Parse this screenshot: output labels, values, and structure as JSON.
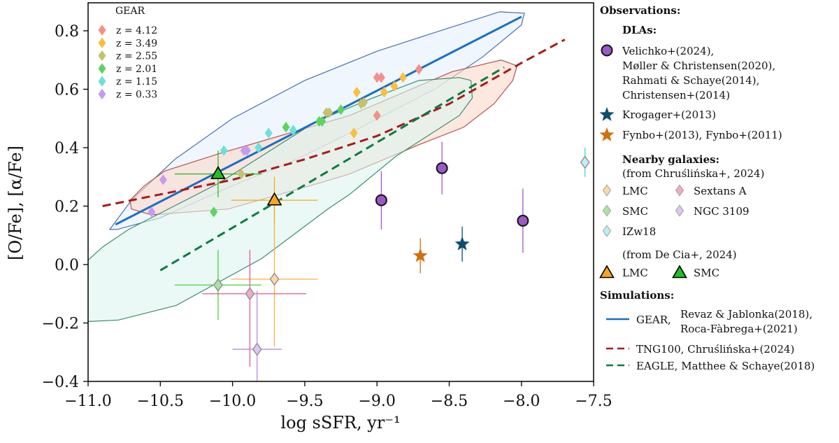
{
  "chart_data": {
    "type": "scatter",
    "xlabel": "log sSFR, yr⁻¹",
    "ylabel": "[O/Fe], [α/Fe]",
    "xlim": [
      -11.0,
      -7.5
    ],
    "ylim": [
      -0.4,
      0.9
    ],
    "xticks": [
      -11.0,
      -10.5,
      -10.0,
      -9.5,
      -9.0,
      -8.5,
      -8.0,
      -7.5
    ],
    "xtick_labels": [
      "−11.0",
      "−10.5",
      "−10.0",
      "−9.5",
      "−9.0",
      "−8.5",
      "−8.0",
      "−7.5"
    ],
    "yticks": [
      -0.4,
      -0.2,
      0.0,
      0.2,
      0.4,
      0.6,
      0.8
    ],
    "ytick_labels": [
      "−0.4",
      "−0.2",
      "0.0",
      "0.2",
      "0.4",
      "0.6",
      "0.8"
    ],
    "grid": false,
    "gear_legend_title": "GEAR",
    "gear_points": [
      {
        "name": "z = 4.12",
        "color": "#f4908a",
        "points": [
          [
            -8.71,
            0.668
          ],
          [
            -9.0,
            0.64
          ],
          [
            -8.97,
            0.64
          ],
          [
            -9.0,
            0.51
          ]
        ]
      },
      {
        "name": "z = 3.49",
        "color": "#fbbf3a",
        "points": [
          [
            -8.82,
            0.64
          ],
          [
            -8.88,
            0.61
          ],
          [
            -8.95,
            0.59
          ],
          [
            -9.14,
            0.59
          ],
          [
            -9.16,
            0.45
          ]
        ]
      },
      {
        "name": "z = 2.55",
        "color": "#c4c26a",
        "points": [
          [
            -9.11,
            0.55
          ],
          [
            -9.09,
            0.555
          ],
          [
            -9.35,
            0.52
          ],
          [
            -9.33,
            0.52
          ],
          [
            -9.94,
            0.31
          ]
        ]
      },
      {
        "name": "z = 2.01",
        "color": "#5fd35f",
        "points": [
          [
            -9.25,
            0.53
          ],
          [
            -9.4,
            0.49
          ],
          [
            -9.38,
            0.49
          ],
          [
            -9.63,
            0.47
          ],
          [
            -10.13,
            0.18
          ]
        ]
      },
      {
        "name": "z = 1.15",
        "color": "#6ee0da",
        "points": [
          [
            -10.06,
            0.39
          ],
          [
            -9.82,
            0.4
          ],
          [
            -9.75,
            0.45
          ],
          [
            -9.58,
            0.46
          ]
        ]
      },
      {
        "name": "z = 0.33",
        "color": "#c79af0",
        "points": [
          [
            -10.48,
            0.29
          ],
          [
            -10.56,
            0.18
          ],
          [
            -9.92,
            0.39
          ],
          [
            -9.9,
            0.39
          ]
        ]
      }
    ],
    "regions": [
      {
        "ref": "gear",
        "fill": "#e6f0fb",
        "stroke": "#4a6fb0",
        "points": [
          [
            -10.85,
            0.12
          ],
          [
            -10.7,
            0.22
          ],
          [
            -10.4,
            0.36
          ],
          [
            -10.0,
            0.5
          ],
          [
            -9.5,
            0.63
          ],
          [
            -9.0,
            0.73
          ],
          [
            -8.5,
            0.81
          ],
          [
            -8.15,
            0.865
          ],
          [
            -7.98,
            0.86
          ],
          [
            -8.0,
            0.82
          ],
          [
            -8.27,
            0.71
          ],
          [
            -8.6,
            0.6
          ],
          [
            -9.19,
            0.45
          ],
          [
            -9.6,
            0.35
          ],
          [
            -10.0,
            0.27
          ],
          [
            -10.5,
            0.16
          ],
          [
            -10.8,
            0.12
          ]
        ]
      },
      {
        "ref": "tng",
        "fill": "#fbd9cc",
        "stroke": "#b5524a",
        "points": [
          [
            -10.71,
            0.22
          ],
          [
            -10.61,
            0.27
          ],
          [
            -10.47,
            0.32
          ],
          [
            -10.09,
            0.38
          ],
          [
            -9.19,
            0.51
          ],
          [
            -8.48,
            0.66
          ],
          [
            -8.14,
            0.7
          ],
          [
            -8.03,
            0.68
          ],
          [
            -8.06,
            0.63
          ],
          [
            -8.19,
            0.55
          ],
          [
            -8.4,
            0.47
          ],
          [
            -8.71,
            0.41
          ],
          [
            -9.19,
            0.31
          ],
          [
            -9.39,
            0.28
          ],
          [
            -10.03,
            0.19
          ],
          [
            -10.56,
            0.17
          ],
          [
            -10.7,
            0.19
          ]
        ]
      },
      {
        "ref": "eagle",
        "fill": "#dcf5ee",
        "stroke": "#3f8c6a",
        "points": [
          [
            -11.0,
            0.015
          ],
          [
            -10.9,
            0.06
          ],
          [
            -10.72,
            0.12
          ],
          [
            -10.09,
            0.28
          ],
          [
            -9.42,
            0.49
          ],
          [
            -9.03,
            0.57
          ],
          [
            -8.71,
            0.63
          ],
          [
            -8.43,
            0.64
          ],
          [
            -8.35,
            0.63
          ],
          [
            -8.34,
            0.57
          ],
          [
            -8.43,
            0.51
          ],
          [
            -8.87,
            0.37
          ],
          [
            -9.19,
            0.24
          ],
          [
            -9.34,
            0.19
          ],
          [
            -9.8,
            0.02
          ],
          [
            -10.39,
            -0.14
          ],
          [
            -10.79,
            -0.19
          ],
          [
            -11.0,
            -0.195
          ]
        ]
      }
    ],
    "lines": [
      {
        "ref": "gear",
        "color": "#1a6fc0",
        "dash": "none",
        "points": [
          [
            -10.81,
            0.137
          ],
          [
            -8.0,
            0.848
          ]
        ]
      },
      {
        "ref": "tng",
        "color": "#a51c1c",
        "dash": "dashed",
        "points": [
          [
            -10.9,
            0.2
          ],
          [
            -10.0,
            0.29
          ],
          [
            -9.5,
            0.36
          ],
          [
            -9.0,
            0.44
          ],
          [
            -8.5,
            0.55
          ],
          [
            -8.0,
            0.69
          ],
          [
            -7.7,
            0.77
          ]
        ]
      },
      {
        "ref": "eagle",
        "color": "#0e7a45",
        "dash": "dashed",
        "points": [
          [
            -10.5,
            -0.02
          ],
          [
            -8.12,
            0.675
          ]
        ]
      }
    ],
    "observations": [
      {
        "ref": "dla",
        "marker": "circle",
        "color": "#9b59c6",
        "points": [
          {
            "x": -8.97,
            "y": 0.22,
            "yerr": [
              0.1,
              0.1
            ]
          },
          {
            "x": -8.55,
            "y": 0.33,
            "yerr": [
              0.09,
              0.09
            ]
          },
          {
            "x": -7.99,
            "y": 0.15,
            "yerr": [
              0.11,
              0.11
            ]
          }
        ]
      },
      {
        "ref": "krogager",
        "marker": "star",
        "color": "#0d4d6e",
        "points": [
          {
            "x": -8.41,
            "y": 0.07,
            "yerr": [
              0.06,
              0.06
            ]
          }
        ]
      },
      {
        "ref": "fynbo",
        "marker": "star",
        "color": "#d2700e",
        "points": [
          {
            "x": -8.7,
            "y": 0.03,
            "yerr": [
              0.06,
              0.06
            ]
          }
        ]
      },
      {
        "ref": "lmc_c",
        "marker": "diamond",
        "color": "#fbb040",
        "fill": "#fbd9a6",
        "points": [
          {
            "x": -9.71,
            "y": -0.05,
            "xerr": [
              0.3,
              0.3
            ],
            "yerr": [
              0.23,
              0.26
            ]
          }
        ]
      },
      {
        "ref": "smc_c",
        "marker": "diamond",
        "color": "#4ccc40",
        "fill": "#a8e6a0",
        "points": [
          {
            "x": -10.1,
            "y": -0.07,
            "xerr": [
              0.3,
              0.3
            ],
            "yerr": [
              0.12,
              0.12
            ]
          }
        ]
      },
      {
        "ref": "sextans",
        "marker": "diamond",
        "color": "#e8559a",
        "fill": "#f2aacb",
        "points": [
          {
            "x": -9.88,
            "y": -0.1,
            "xerr": [
              0.33,
              0.39
            ],
            "yerr": [
              0.25,
              0.15
            ]
          }
        ]
      },
      {
        "ref": "ngc3109",
        "marker": "diamond",
        "color": "#b58be0",
        "fill": "#dcc8f0",
        "points": [
          {
            "x": -9.83,
            "y": -0.29,
            "xerr": [
              0.17,
              0.17
            ],
            "yerr": [
              0.11,
              0.2
            ]
          }
        ]
      },
      {
        "ref": "izw18",
        "marker": "diamond",
        "color": "#45d0e8",
        "fill": "#bfeef7",
        "points": [
          {
            "x": -7.56,
            "y": 0.35,
            "xerr": [
              0.02,
              0.02
            ],
            "yerr": [
              0.05,
              0.05
            ]
          }
        ]
      },
      {
        "ref": "lmc_d",
        "marker": "triangle",
        "color": "#f5a623",
        "points": [
          {
            "x": -9.71,
            "y": 0.22,
            "xerr": [
              0.3,
              0.3
            ],
            "yerr": [
              0.08,
              0.08
            ]
          }
        ]
      },
      {
        "ref": "smc_d",
        "marker": "triangle",
        "color": "#22c022",
        "points": [
          {
            "x": -10.1,
            "y": 0.31,
            "xerr": [
              0.3,
              0.3
            ],
            "yerr": [
              0.08,
              0.08
            ]
          }
        ]
      }
    ]
  },
  "legend": {
    "observations": "Observations:",
    "dlas": "DLAs:",
    "dla_lines": [
      "Velichko+(2024),",
      "Møller & Christensen(2020),",
      "Rahmati & Schaye(2014),",
      "Christensen+(2014)"
    ],
    "krogager": "Krogager+(2013)",
    "fynbo": "Fynbo+(2013), Fynbo+(2011)",
    "nearby": "Nearby galaxies:",
    "from_chr": "(from Chruślińska+, 2024)",
    "lmc": "LMC",
    "sextans": "Sextans A",
    "smc": "SMC",
    "ngc3109": "NGC 3109",
    "izw18": "IZw18",
    "from_decia": "(from De Cia+, 2024)",
    "lmc_d": "LMC",
    "smc_d": "SMC",
    "simulations": "Simulations:",
    "gear": "GEAR,",
    "gear_refs": [
      "Revaz & Jablonka(2018),",
      "Roca-Fàbrega+(2021)"
    ],
    "tng": "TNG100, Chruślińska+(2024)",
    "eagle": "EAGLE, Matthee & Schaye(2018)"
  }
}
